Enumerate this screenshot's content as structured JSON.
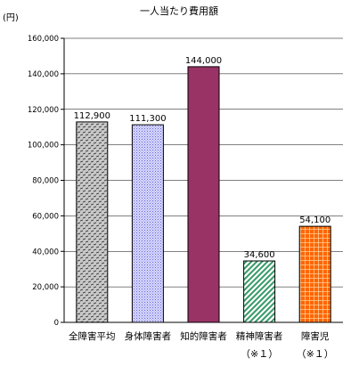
{
  "chart_data": {
    "type": "bar",
    "title": "一人当たり費用額",
    "ylabel": "(円)",
    "xlabel": "",
    "ylim": [
      0,
      160000
    ],
    "yticks": [
      "0",
      "20,000",
      "40,000",
      "60,000",
      "80,000",
      "100,000",
      "120,000",
      "140,000",
      "160,000"
    ],
    "grid": true,
    "categories": [
      "全障害平均",
      "身体障害者",
      "知的障害者",
      "精神障害者",
      "障害児"
    ],
    "notes": [
      "",
      "",
      "",
      "（※１）",
      "（※１）"
    ],
    "values": [
      112900,
      111300,
      144000,
      34600,
      54100
    ],
    "value_labels": [
      "112,900",
      "111,300",
      "144,000",
      "34,600",
      "54,100"
    ],
    "colors": [
      "#c0c0c0",
      "#ccccff",
      "#993366",
      "#339966",
      "#ff6600"
    ]
  }
}
